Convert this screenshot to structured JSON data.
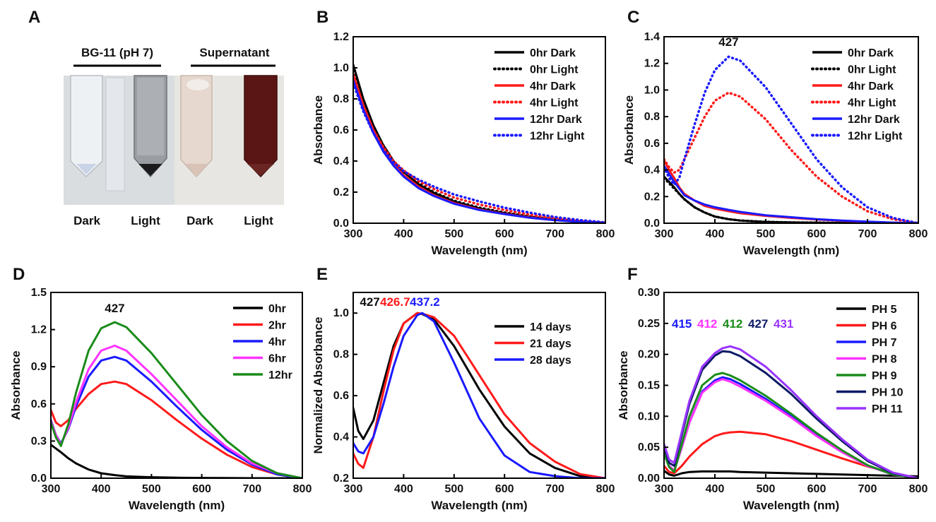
{
  "panel_a": {
    "letter": "A",
    "group_labels": [
      "BG-11 (pH 7)",
      "Supernatant"
    ],
    "tube_labels": [
      "Dark",
      "Light",
      "Dark",
      "Light"
    ]
  },
  "chart_data": [
    {
      "panel": "B",
      "type": "line",
      "title": "",
      "xlabel": "Wavelength (nm)",
      "ylabel": "Absorbance",
      "xlim": [
        300,
        800
      ],
      "ylim": [
        0,
        1.2
      ],
      "xticks": [
        300,
        400,
        500,
        600,
        700,
        800
      ],
      "yticks": [
        0.0,
        0.2,
        0.4,
        0.6,
        0.8,
        1.0,
        1.2
      ],
      "ytick_decimals": 1,
      "legend_position": "top-right",
      "x": [
        300,
        320,
        340,
        360,
        380,
        400,
        430,
        460,
        500,
        550,
        600,
        650,
        700,
        750,
        800
      ],
      "series": [
        {
          "name": "0hr Dark",
          "color": "#000000",
          "style": "solid",
          "values": [
            1.02,
            0.8,
            0.63,
            0.5,
            0.4,
            0.33,
            0.25,
            0.195,
            0.14,
            0.095,
            0.065,
            0.04,
            0.022,
            0.01,
            0.003
          ]
        },
        {
          "name": "0hr Light",
          "color": "#000000",
          "style": "dotted",
          "values": [
            1.01,
            0.79,
            0.62,
            0.5,
            0.4,
            0.33,
            0.255,
            0.2,
            0.145,
            0.1,
            0.068,
            0.042,
            0.024,
            0.011,
            0.003
          ]
        },
        {
          "name": "4hr Dark",
          "color": "#ff1a1a",
          "style": "solid",
          "values": [
            0.96,
            0.76,
            0.6,
            0.48,
            0.38,
            0.31,
            0.235,
            0.18,
            0.13,
            0.088,
            0.06,
            0.037,
            0.02,
            0.009,
            0.002
          ]
        },
        {
          "name": "4hr Light",
          "color": "#ff1a1a",
          "style": "dotted",
          "values": [
            0.95,
            0.75,
            0.6,
            0.49,
            0.4,
            0.34,
            0.27,
            0.22,
            0.165,
            0.12,
            0.085,
            0.055,
            0.032,
            0.015,
            0.004
          ]
        },
        {
          "name": "12hr Dark",
          "color": "#1a1aff",
          "style": "solid",
          "values": [
            0.92,
            0.73,
            0.58,
            0.46,
            0.37,
            0.3,
            0.225,
            0.175,
            0.125,
            0.085,
            0.058,
            0.035,
            0.019,
            0.008,
            0.002
          ]
        },
        {
          "name": "12hr Light",
          "color": "#1a1aff",
          "style": "dotted",
          "values": [
            0.9,
            0.72,
            0.58,
            0.47,
            0.39,
            0.335,
            0.28,
            0.235,
            0.185,
            0.14,
            0.1,
            0.068,
            0.04,
            0.02,
            0.005
          ]
        }
      ],
      "annotations": []
    },
    {
      "panel": "C",
      "type": "line",
      "title": "",
      "xlabel": "Wavelength (nm)",
      "ylabel": "Absorbance",
      "xlim": [
        300,
        800
      ],
      "ylim": [
        0,
        1.4
      ],
      "xticks": [
        300,
        400,
        500,
        600,
        700,
        800
      ],
      "yticks": [
        0.0,
        0.2,
        0.4,
        0.6,
        0.8,
        1.0,
        1.2,
        1.4
      ],
      "ytick_decimals": 1,
      "legend_position": "top-right",
      "x": [
        300,
        310,
        320,
        330,
        340,
        360,
        380,
        400,
        427,
        450,
        500,
        550,
        600,
        650,
        700,
        750,
        800
      ],
      "series": [
        {
          "name": "0hr Dark",
          "color": "#000000",
          "style": "solid",
          "values": [
            0.35,
            0.31,
            0.27,
            0.22,
            0.18,
            0.12,
            0.08,
            0.05,
            0.03,
            0.02,
            0.01,
            0.006,
            0.004,
            0.002,
            0.001,
            0.0,
            0.0
          ]
        },
        {
          "name": "0hr Light",
          "color": "#000000",
          "style": "dotted",
          "values": [
            0.34,
            0.3,
            0.26,
            0.22,
            0.18,
            0.12,
            0.08,
            0.05,
            0.03,
            0.02,
            0.01,
            0.006,
            0.004,
            0.002,
            0.001,
            0.0,
            0.0
          ]
        },
        {
          "name": "4hr Dark",
          "color": "#ff1a1a",
          "style": "solid",
          "values": [
            0.47,
            0.4,
            0.34,
            0.27,
            0.22,
            0.17,
            0.13,
            0.11,
            0.09,
            0.075,
            0.055,
            0.04,
            0.028,
            0.018,
            0.01,
            0.004,
            0.0
          ]
        },
        {
          "name": "4hr Light",
          "color": "#ff1a1a",
          "style": "dotted",
          "values": [
            0.48,
            0.42,
            0.38,
            0.4,
            0.48,
            0.64,
            0.8,
            0.92,
            0.98,
            0.95,
            0.78,
            0.55,
            0.35,
            0.2,
            0.09,
            0.03,
            0.0
          ]
        },
        {
          "name": "12hr Dark",
          "color": "#1a1aff",
          "style": "solid",
          "values": [
            0.43,
            0.37,
            0.31,
            0.26,
            0.21,
            0.17,
            0.14,
            0.12,
            0.1,
            0.085,
            0.06,
            0.045,
            0.03,
            0.02,
            0.012,
            0.005,
            0.0
          ]
        },
        {
          "name": "12hr Light",
          "color": "#1a1aff",
          "style": "dotted",
          "values": [
            0.42,
            0.34,
            0.29,
            0.34,
            0.48,
            0.74,
            0.98,
            1.15,
            1.25,
            1.22,
            1.02,
            0.75,
            0.48,
            0.27,
            0.12,
            0.04,
            0.0
          ]
        }
      ],
      "annotations": [
        {
          "text": "427",
          "x": 427,
          "y": 1.33,
          "color": "#111111"
        }
      ]
    },
    {
      "panel": "D",
      "type": "line",
      "title": "",
      "xlabel": "Wavelength (nm)",
      "ylabel": "Absorbance",
      "xlim": [
        300,
        800
      ],
      "ylim": [
        0,
        1.5
      ],
      "xticks": [
        300,
        400,
        500,
        600,
        700,
        800
      ],
      "yticks": [
        0.0,
        0.3,
        0.6,
        0.9,
        1.2,
        1.5
      ],
      "ytick_decimals": 1,
      "legend_position": "top-right",
      "x": [
        300,
        310,
        320,
        335,
        350,
        375,
        400,
        427,
        450,
        500,
        550,
        600,
        650,
        700,
        750,
        800
      ],
      "series": [
        {
          "name": "0hr",
          "color": "#000000",
          "style": "solid",
          "values": [
            0.27,
            0.24,
            0.21,
            0.16,
            0.12,
            0.07,
            0.04,
            0.025,
            0.015,
            0.008,
            0.004,
            0.002,
            0.001,
            0.0,
            0.0,
            0.0
          ]
        },
        {
          "name": "2hr",
          "color": "#ff1a1a",
          "style": "solid",
          "values": [
            0.55,
            0.45,
            0.42,
            0.47,
            0.56,
            0.68,
            0.76,
            0.78,
            0.76,
            0.63,
            0.47,
            0.32,
            0.19,
            0.09,
            0.03,
            0.0
          ]
        },
        {
          "name": "4hr",
          "color": "#1a1aff",
          "style": "solid",
          "values": [
            0.47,
            0.35,
            0.28,
            0.4,
            0.58,
            0.82,
            0.95,
            0.98,
            0.95,
            0.78,
            0.58,
            0.39,
            0.23,
            0.11,
            0.03,
            0.0
          ]
        },
        {
          "name": "6hr",
          "color": "#ff33ff",
          "style": "solid",
          "values": [
            0.46,
            0.35,
            0.27,
            0.41,
            0.61,
            0.88,
            1.03,
            1.07,
            1.03,
            0.84,
            0.63,
            0.42,
            0.25,
            0.12,
            0.04,
            0.0
          ]
        },
        {
          "name": "12hr",
          "color": "#1a8c1a",
          "style": "solid",
          "values": [
            0.45,
            0.33,
            0.26,
            0.44,
            0.69,
            1.03,
            1.21,
            1.26,
            1.22,
            1.01,
            0.76,
            0.51,
            0.3,
            0.14,
            0.04,
            0.0
          ]
        }
      ],
      "annotations": [
        {
          "text": "427",
          "x": 427,
          "y": 1.34,
          "color": "#111111"
        }
      ]
    },
    {
      "panel": "E",
      "type": "line",
      "title": "",
      "xlabel": "Wavelength (nm)",
      "ylabel": "Normalized Absorbance",
      "xlim": [
        300,
        800
      ],
      "ylim": [
        0.2,
        1.1
      ],
      "xticks": [
        300,
        400,
        500,
        600,
        700,
        800
      ],
      "yticks": [
        0.2,
        0.4,
        0.6,
        0.8,
        1.0
      ],
      "ytick_decimals": 1,
      "legend_position": "top-right",
      "x": [
        300,
        310,
        320,
        340,
        360,
        380,
        400,
        427,
        437,
        460,
        500,
        550,
        600,
        650,
        700,
        750,
        800
      ],
      "series": [
        {
          "name": "14 days",
          "color": "#000000",
          "style": "solid",
          "values": [
            0.54,
            0.43,
            0.39,
            0.48,
            0.66,
            0.84,
            0.95,
            1.0,
            0.995,
            0.97,
            0.84,
            0.63,
            0.45,
            0.32,
            0.25,
            0.21,
            0.2
          ]
        },
        {
          "name": "21 days",
          "color": "#ff1a1a",
          "style": "solid",
          "values": [
            0.32,
            0.27,
            0.25,
            0.4,
            0.62,
            0.82,
            0.95,
            1.0,
            0.997,
            0.98,
            0.89,
            0.7,
            0.51,
            0.37,
            0.28,
            0.22,
            0.2
          ]
        },
        {
          "name": "28 days",
          "color": "#1a1aff",
          "style": "solid",
          "values": [
            0.37,
            0.33,
            0.32,
            0.4,
            0.56,
            0.74,
            0.89,
            0.99,
            1.0,
            0.96,
            0.76,
            0.49,
            0.31,
            0.23,
            0.21,
            0.2,
            0.2
          ]
        }
      ],
      "annotations": [
        {
          "text": "427",
          "x": 333,
          "y": 1.035,
          "color": "#111111"
        },
        {
          "text": "426.7",
          "x": 383,
          "y": 1.035,
          "color": "#ff1a1a"
        },
        {
          "text": "437.2",
          "x": 442,
          "y": 1.035,
          "color": "#1a1aff"
        }
      ]
    },
    {
      "panel": "F",
      "type": "line",
      "title": "",
      "xlabel": "Wavelength (nm)",
      "ylabel": "Absorbance",
      "xlim": [
        300,
        800
      ],
      "ylim": [
        0,
        0.3
      ],
      "xticks": [
        300,
        400,
        500,
        600,
        700,
        800
      ],
      "yticks": [
        0.0,
        0.05,
        0.1,
        0.15,
        0.2,
        0.25,
        0.3
      ],
      "ytick_decimals": 2,
      "legend_position": "top-right",
      "x": [
        300,
        310,
        320,
        335,
        350,
        375,
        400,
        415,
        430,
        450,
        500,
        550,
        600,
        650,
        700,
        750,
        800
      ],
      "series": [
        {
          "name": "PH 5",
          "color": "#000000",
          "style": "solid",
          "values": [
            0.012,
            0.006,
            0.004,
            0.008,
            0.01,
            0.011,
            0.011,
            0.011,
            0.011,
            0.01,
            0.009,
            0.008,
            0.007,
            0.006,
            0.005,
            0.004,
            0.003
          ]
        },
        {
          "name": "PH 6",
          "color": "#ff1a1a",
          "style": "solid",
          "values": [
            0.02,
            0.01,
            0.008,
            0.02,
            0.035,
            0.055,
            0.068,
            0.072,
            0.074,
            0.075,
            0.071,
            0.06,
            0.046,
            0.032,
            0.019,
            0.008,
            0.0
          ]
        },
        {
          "name": "PH 7",
          "color": "#1a1aff",
          "style": "solid",
          "values": [
            0.04,
            0.02,
            0.012,
            0.05,
            0.09,
            0.14,
            0.158,
            0.163,
            0.16,
            0.152,
            0.128,
            0.1,
            0.07,
            0.043,
            0.02,
            0.006,
            0.0
          ]
        },
        {
          "name": "PH 8",
          "color": "#ff33ff",
          "style": "solid",
          "values": [
            0.04,
            0.02,
            0.012,
            0.05,
            0.09,
            0.138,
            0.155,
            0.16,
            0.156,
            0.148,
            0.125,
            0.098,
            0.068,
            0.042,
            0.02,
            0.006,
            0.0
          ]
        },
        {
          "name": "PH 9",
          "color": "#1a8c1a",
          "style": "solid",
          "values": [
            0.04,
            0.018,
            0.01,
            0.055,
            0.1,
            0.15,
            0.167,
            0.17,
            0.166,
            0.158,
            0.133,
            0.104,
            0.073,
            0.045,
            0.021,
            0.006,
            0.0
          ]
        },
        {
          "name": "PH 10",
          "color": "#0d1a66",
          "style": "solid",
          "values": [
            0.05,
            0.025,
            0.02,
            0.07,
            0.12,
            0.175,
            0.198,
            0.205,
            0.204,
            0.197,
            0.17,
            0.136,
            0.096,
            0.06,
            0.028,
            0.008,
            0.0
          ]
        },
        {
          "name": "PH 11",
          "color": "#9933ff",
          "style": "solid",
          "values": [
            0.055,
            0.03,
            0.025,
            0.075,
            0.125,
            0.18,
            0.202,
            0.21,
            0.213,
            0.208,
            0.18,
            0.142,
            0.1,
            0.063,
            0.03,
            0.009,
            0.0
          ]
        }
      ],
      "annotations": [
        {
          "text": "415",
          "x": 335,
          "y": 0.243,
          "color": "#1a1aff"
        },
        {
          "text": "412",
          "x": 385,
          "y": 0.243,
          "color": "#ff33ff"
        },
        {
          "text": "412",
          "x": 435,
          "y": 0.243,
          "color": "#1a8c1a"
        },
        {
          "text": "427",
          "x": 485,
          "y": 0.243,
          "color": "#0d1a66"
        },
        {
          "text": "431",
          "x": 535,
          "y": 0.243,
          "color": "#9933ff"
        }
      ]
    }
  ]
}
